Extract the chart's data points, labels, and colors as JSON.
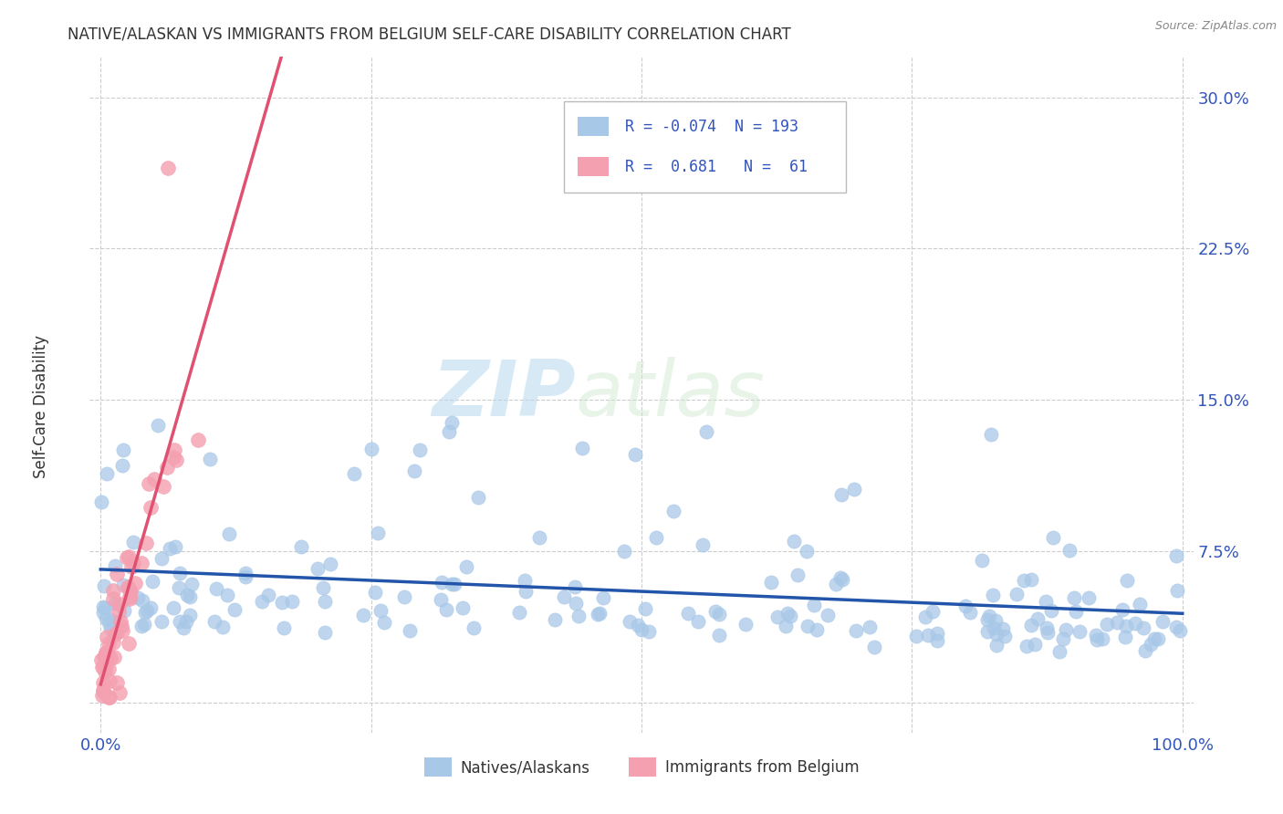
{
  "title": "NATIVE/ALASKAN VS IMMIGRANTS FROM BELGIUM SELF-CARE DISABILITY CORRELATION CHART",
  "source": "Source: ZipAtlas.com",
  "ylabel": "Self-Care Disability",
  "watermark_zip": "ZIP",
  "watermark_atlas": "atlas",
  "xlim": [
    -0.01,
    1.01
  ],
  "ylim": [
    -0.015,
    0.32
  ],
  "xticks": [
    0.0,
    0.25,
    0.5,
    0.75,
    1.0
  ],
  "xticklabels": [
    "0.0%",
    "",
    "",
    "",
    "100.0%"
  ],
  "yticks": [
    0.0,
    0.075,
    0.15,
    0.225,
    0.3
  ],
  "yticklabels": [
    "",
    "7.5%",
    "15.0%",
    "22.5%",
    "30.0%"
  ],
  "blue_color": "#a8c8e8",
  "pink_color": "#f4a0b0",
  "blue_line_color": "#2255aa",
  "pink_line_color": "#e05070",
  "pink_dash_color": "#cccccc",
  "legend_R1": "-0.074",
  "legend_N1": "193",
  "legend_R2": "0.681",
  "legend_N2": "61",
  "legend_label1": "Natives/Alaskans",
  "legend_label2": "Immigrants from Belgium",
  "blue_R": -0.074,
  "blue_N": 193,
  "pink_R": 0.681,
  "pink_N": 61,
  "seed": 42
}
